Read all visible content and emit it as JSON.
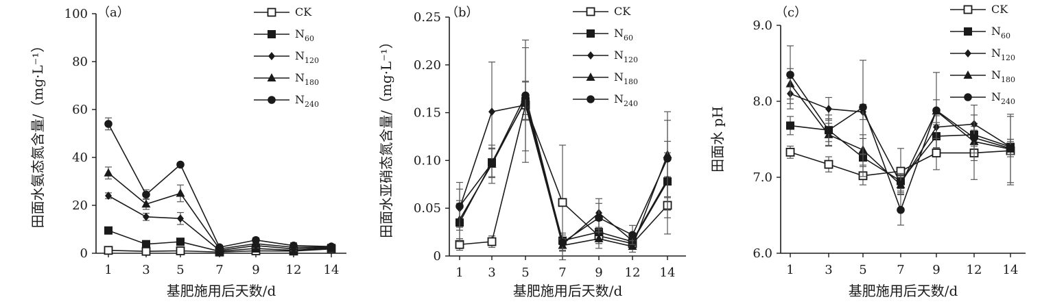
{
  "chart_data": [
    {
      "type": "line",
      "panel_label": "（a）",
      "ylabel": "田面水氨态氮含量/（mg·L⁻¹）",
      "xlabel": "基肥施用后天数/d",
      "categories": [
        "1",
        "3",
        "5",
        "7",
        "9",
        "12",
        "14"
      ],
      "ylim": [
        0,
        100
      ],
      "yticks": [
        "0",
        "20",
        "40",
        "60",
        "80",
        "100"
      ],
      "legend_position": "top-right",
      "series": [
        {
          "name": "CK",
          "base": "CK",
          "sub": "",
          "marker": "open-square",
          "values": [
            1.2,
            0.8,
            1.0,
            0.5,
            1.0,
            0.9,
            1.8
          ],
          "errors": [
            0.5,
            0.4,
            0.4,
            0.3,
            0.5,
            0.4,
            0.6
          ]
        },
        {
          "name": "N60",
          "base": "N",
          "sub": "60",
          "marker": "filled-square",
          "values": [
            9.5,
            3.8,
            4.8,
            0.8,
            2.0,
            1.2,
            2.2
          ],
          "errors": [
            1.0,
            0.8,
            1.0,
            0.3,
            0.8,
            0.5,
            0.7
          ]
        },
        {
          "name": "N120",
          "base": "N",
          "sub": "120",
          "marker": "diamond",
          "values": [
            24.0,
            15.2,
            14.5,
            1.2,
            3.2,
            1.8,
            2.5
          ],
          "errors": [
            1.2,
            1.5,
            2.5,
            0.5,
            1.0,
            0.8,
            0.7
          ]
        },
        {
          "name": "N180",
          "base": "N",
          "sub": "180",
          "marker": "triangle",
          "values": [
            33.5,
            20.5,
            25.0,
            1.8,
            4.0,
            2.5,
            2.6
          ],
          "errors": [
            2.5,
            2.2,
            3.5,
            0.6,
            1.2,
            1.0,
            0.8
          ]
        },
        {
          "name": "N240",
          "base": "N",
          "sub": "240",
          "marker": "circle",
          "values": [
            54.0,
            24.5,
            37.0,
            2.5,
            5.5,
            3.2,
            2.8
          ],
          "errors": [
            2.5,
            2.0,
            0.5,
            0.8,
            1.0,
            1.2,
            0.8
          ]
        }
      ]
    },
    {
      "type": "line",
      "panel_label": "（b）",
      "ylabel": "田面水亚硝态氮含量/（mg·L⁻¹）",
      "xlabel": "基肥施用后天数/d",
      "categories": [
        "1",
        "3",
        "5",
        "7",
        "9",
        "12",
        "14"
      ],
      "ylim": [
        0,
        0.25
      ],
      "yticks": [
        "0",
        "0.05",
        "0.10",
        "0.15",
        "0.20",
        "0.25"
      ],
      "legend_position": "top-right",
      "series": [
        {
          "name": "CK",
          "base": "CK",
          "sub": "",
          "marker": "open-square",
          "values": [
            0.012,
            0.015,
            0.158,
            0.056,
            0.021,
            0.013,
            0.053
          ],
          "errors": [
            0.006,
            0.006,
            0.01,
            0.06,
            0.008,
            0.006,
            0.03
          ]
        },
        {
          "name": "N60",
          "base": "N",
          "sub": "60",
          "marker": "filled-square",
          "values": [
            0.035,
            0.098,
            0.162,
            0.016,
            0.025,
            0.015,
            0.078
          ],
          "errors": [
            0.02,
            0.015,
            0.02,
            0.008,
            0.012,
            0.008,
            0.03
          ]
        },
        {
          "name": "N120",
          "base": "N",
          "sub": "120",
          "marker": "diamond",
          "values": [
            0.05,
            0.151,
            0.158,
            0.012,
            0.045,
            0.016,
            0.08
          ],
          "errors": [
            0.02,
            0.052,
            0.06,
            0.006,
            0.015,
            0.008,
            0.04
          ]
        },
        {
          "name": "N180",
          "base": "N",
          "sub": "180",
          "marker": "triangle",
          "values": [
            0.038,
            0.096,
            0.163,
            0.011,
            0.018,
            0.01,
            0.106
          ],
          "errors": [
            0.02,
            0.02,
            0.02,
            0.006,
            0.01,
            0.006,
            0.045
          ]
        },
        {
          "name": "N240",
          "base": "N",
          "sub": "240",
          "marker": "circle",
          "values": [
            0.052,
            0.097,
            0.168,
            0.014,
            0.04,
            0.022,
            0.102
          ],
          "errors": [
            0.025,
            0.015,
            0.058,
            0.008,
            0.015,
            0.01,
            0.04
          ]
        }
      ]
    },
    {
      "type": "line",
      "panel_label": "（c）",
      "ylabel": "田面水 pH",
      "xlabel": "基肥施用后天数/d",
      "categories": [
        "1",
        "3",
        "5",
        "7",
        "9",
        "12",
        "14"
      ],
      "ylim": [
        6.0,
        9.0
      ],
      "yticks": [
        "6.0",
        "7.0",
        "8.0",
        "9.0"
      ],
      "legend_position": "top-right",
      "series": [
        {
          "name": "CK",
          "base": "CK",
          "sub": "",
          "marker": "open-square",
          "values": [
            7.33,
            7.17,
            7.02,
            7.08,
            7.32,
            7.32,
            7.35
          ],
          "errors": [
            0.08,
            0.1,
            0.12,
            0.3,
            0.22,
            0.35,
            0.45
          ]
        },
        {
          "name": "N60",
          "base": "N",
          "sub": "60",
          "marker": "filled-square",
          "values": [
            7.68,
            7.62,
            7.26,
            6.95,
            7.54,
            7.56,
            7.4
          ],
          "errors": [
            0.12,
            0.15,
            0.25,
            0.1,
            0.15,
            0.15,
            0.1
          ]
        },
        {
          "name": "N120",
          "base": "N",
          "sub": "120",
          "marker": "diamond",
          "values": [
            8.1,
            7.9,
            7.86,
            6.92,
            7.66,
            7.7,
            7.4
          ],
          "errors": [
            0.2,
            0.15,
            0.1,
            0.1,
            0.15,
            0.25,
            0.1
          ]
        },
        {
          "name": "N180",
          "base": "N",
          "sub": "180",
          "marker": "triangle",
          "values": [
            8.23,
            7.56,
            7.36,
            6.9,
            7.87,
            7.47,
            7.37
          ],
          "errors": [
            0.2,
            0.15,
            0.2,
            0.1,
            0.15,
            0.15,
            0.1
          ]
        },
        {
          "name": "N240",
          "base": "N",
          "sub": "240",
          "marker": "circle",
          "values": [
            8.35,
            7.62,
            7.92,
            6.57,
            7.88,
            7.52,
            7.38
          ],
          "errors": [
            0.38,
            0.2,
            0.62,
            0.2,
            0.5,
            0.3,
            0.45
          ]
        }
      ]
    }
  ]
}
